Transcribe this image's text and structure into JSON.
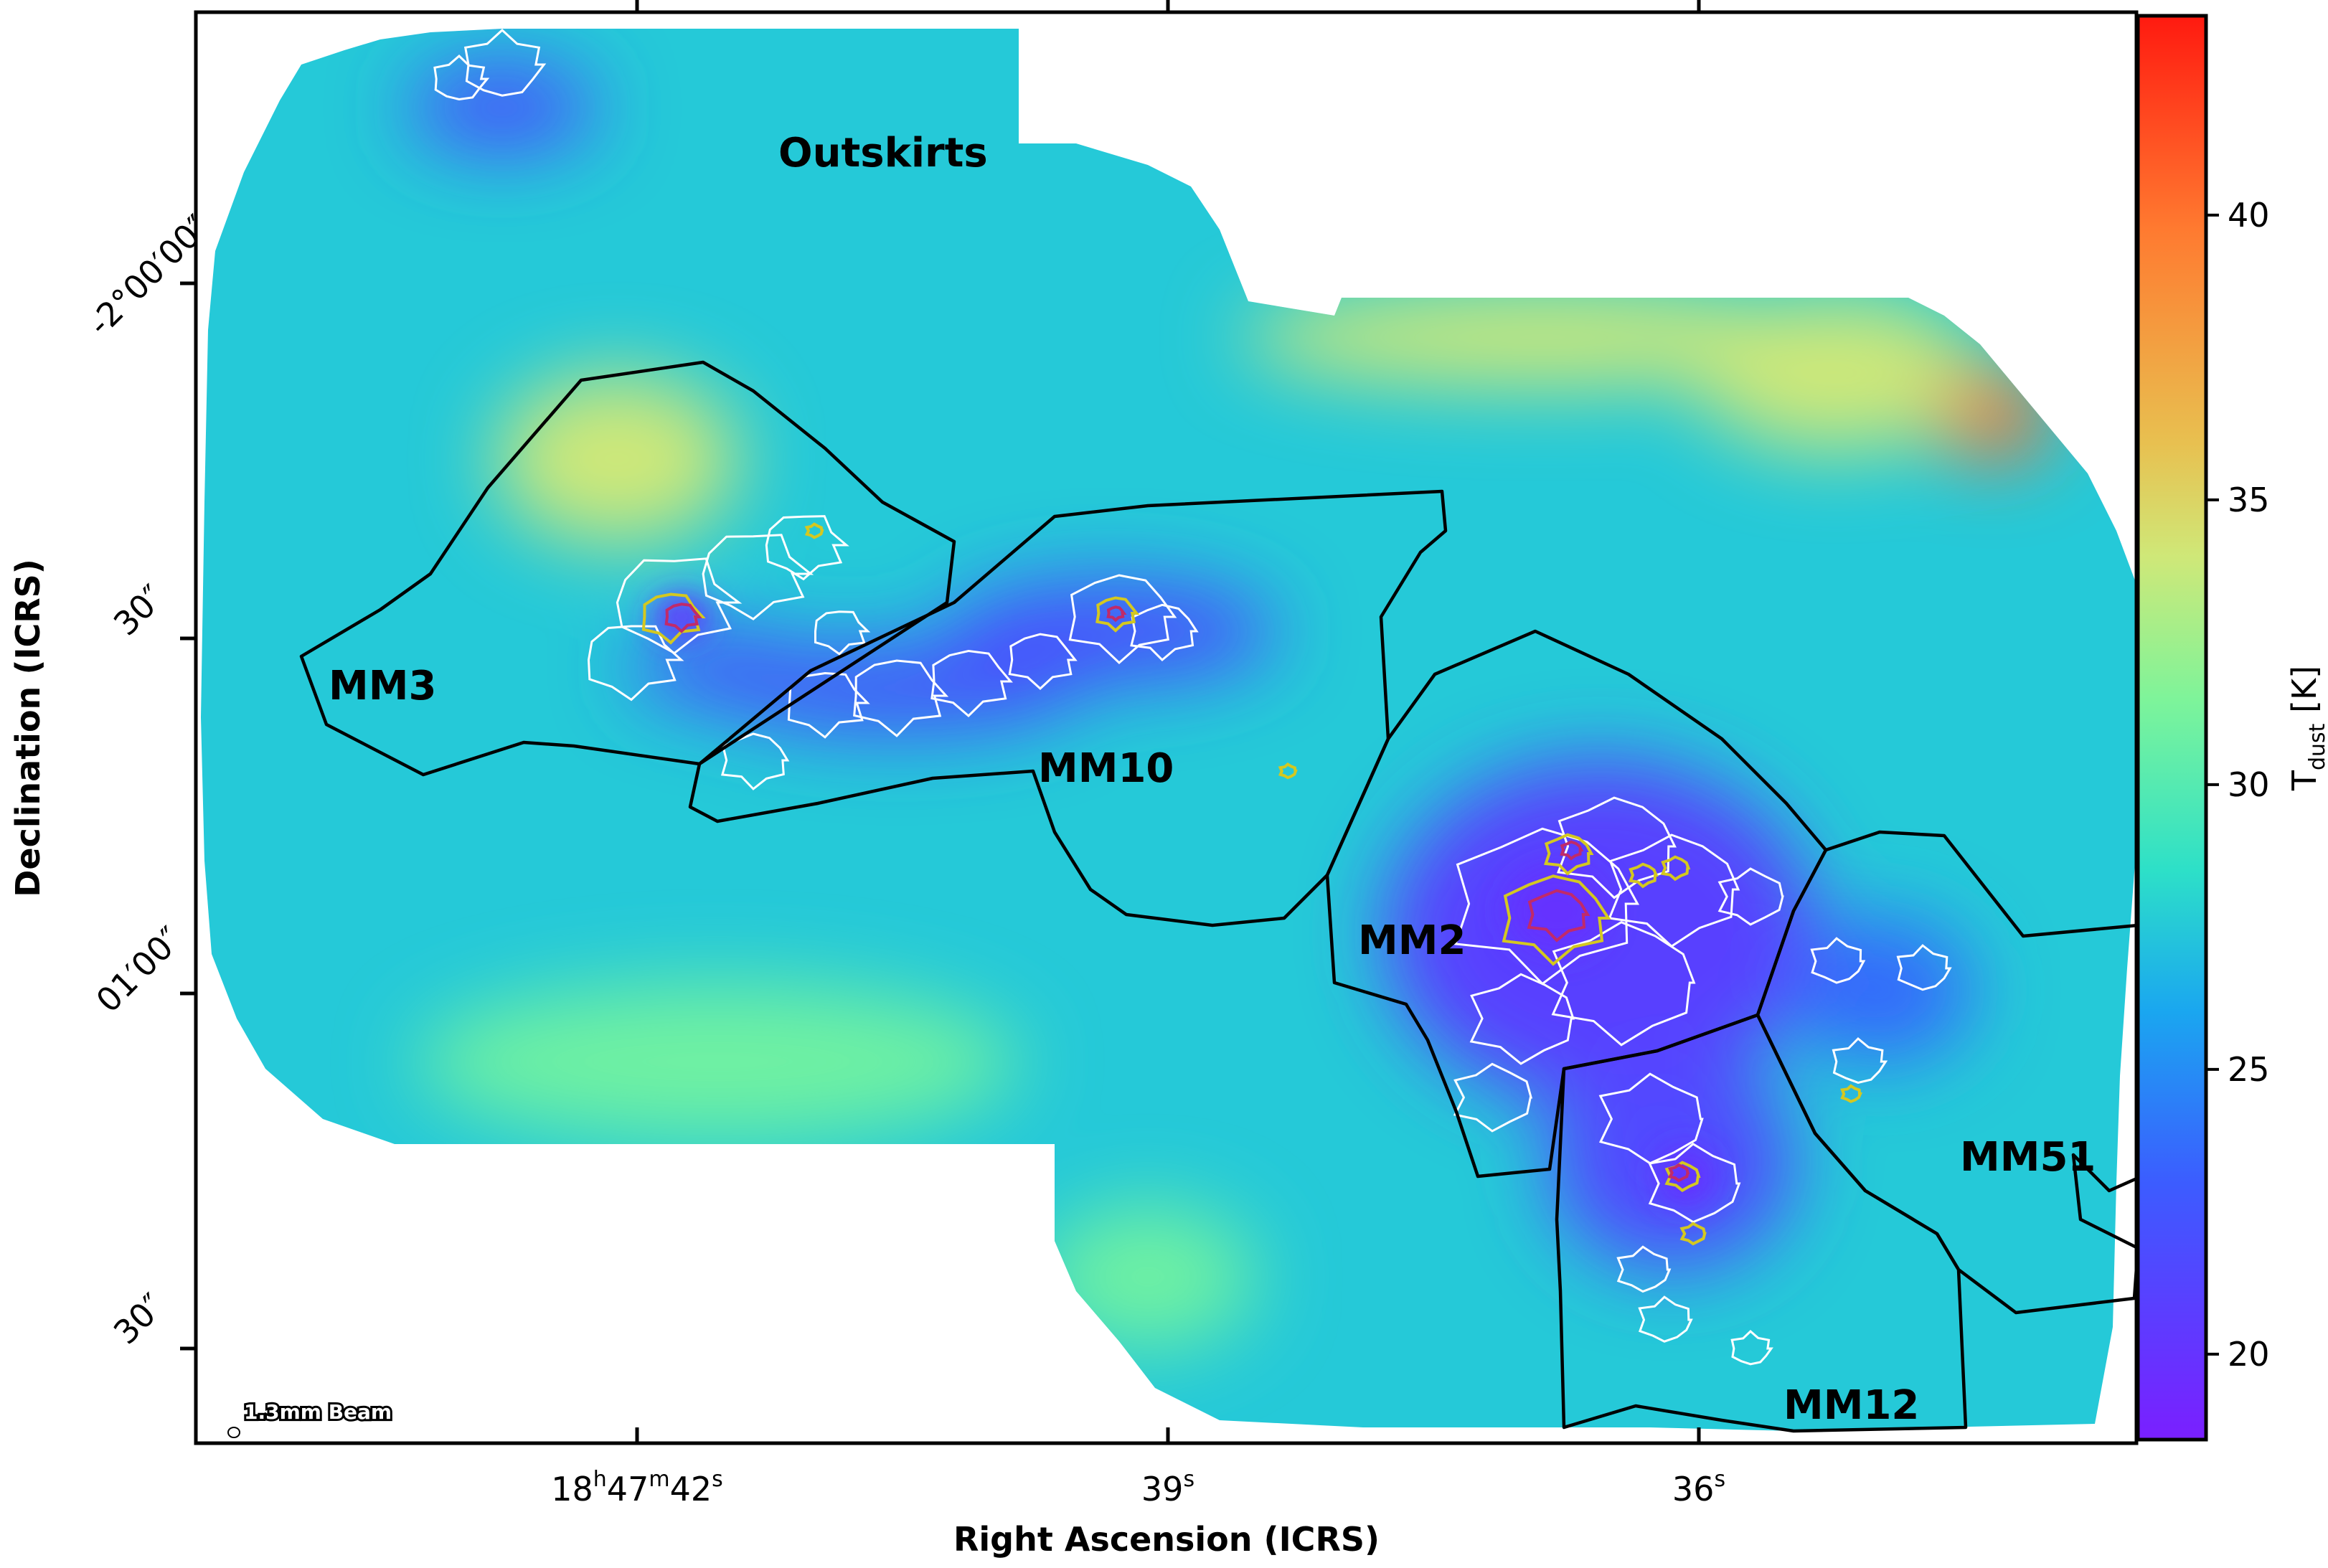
{
  "chart_data": {
    "type": "heatmap",
    "title": "",
    "xlabel": "Right Ascension (ICRS)",
    "ylabel": "Declination (ICRS)",
    "x_ticks": [
      {
        "main": "18",
        "sup1": "h",
        "mid": "47",
        "sup2": "m",
        "end": "42",
        "sup3": "s"
      },
      {
        "main": "39",
        "sup1": "s"
      },
      {
        "main": "36",
        "sup1": "s"
      }
    ],
    "y_ticks": [
      "-2°00′00″",
      "30″",
      "01′00″",
      "30″"
    ],
    "colorbar": {
      "label_main": "T",
      "label_sub": "dust",
      "label_unit": "[K]",
      "range": [
        18.5,
        43.5
      ],
      "ticks": [
        20,
        25,
        30,
        35,
        40
      ],
      "tick_labels": [
        "20",
        "25",
        "30",
        "35",
        "40"
      ],
      "colors": [
        "#7a1fff",
        "#3c5cff",
        "#1aa6f0",
        "#2de0c8",
        "#7ef49a",
        "#cfe878",
        "#e8c050",
        "#ff7a30",
        "#ff1a10"
      ]
    },
    "field": {
      "background_temperature": 27.5,
      "features": [
        {
          "name": "north-cool-spot",
          "temperature": 22
        },
        {
          "name": "mm3-warm-region",
          "temperature": 34
        },
        {
          "name": "ne-warm-band",
          "temperature": 34
        },
        {
          "name": "ne-hot-corner",
          "temperature": 40
        },
        {
          "name": "south-warm-region",
          "temperature": 31
        },
        {
          "name": "mm10-filament",
          "temperature": 22
        },
        {
          "name": "mm2-core",
          "temperature": 21
        },
        {
          "name": "mm12-core",
          "temperature": 21.5
        },
        {
          "name": "mm51-core",
          "temperature": 23.5
        }
      ]
    },
    "regions": [
      {
        "name": "Outskirts"
      },
      {
        "name": "MM3"
      },
      {
        "name": "MM10"
      },
      {
        "name": "MM2"
      },
      {
        "name": "MM51"
      },
      {
        "name": "MM12"
      }
    ],
    "beam_label": "1.3mm Beam"
  }
}
